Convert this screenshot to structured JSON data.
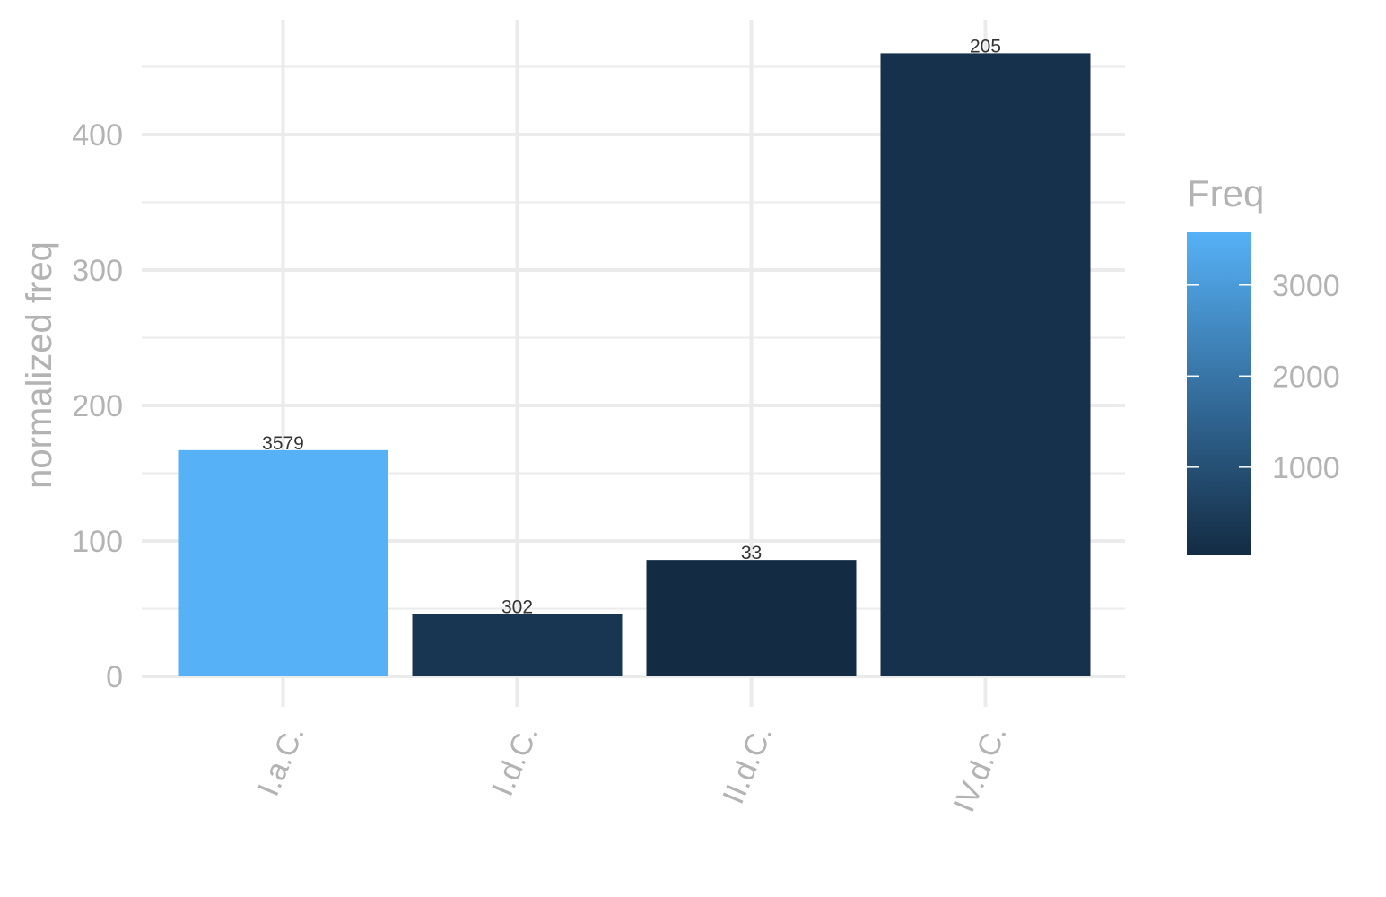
{
  "chart_data": {
    "type": "bar",
    "categories": [
      "I.a.C.",
      "I.d.C.",
      "II.d.C.",
      "IV.d.C."
    ],
    "values": [
      167,
      46,
      86,
      460
    ],
    "labels": [
      "3579",
      "302",
      "33",
      "205"
    ],
    "freq": [
      3579,
      302,
      33,
      205
    ],
    "title": "",
    "xlabel": "",
    "ylabel": "normalized freq",
    "ylim": [
      0,
      480
    ],
    "yticks": [
      0,
      100,
      200,
      300,
      400
    ],
    "ytick_labels": [
      "0",
      "100",
      "200",
      "300",
      "400"
    ],
    "grid": true,
    "legend": {
      "title": "Freq",
      "position": "right",
      "type": "colorbar",
      "range": [
        33,
        3579
      ],
      "ticks": [
        1000,
        2000,
        3000
      ],
      "tick_labels": [
        "1000",
        "2000",
        "3000"
      ],
      "color_low": "#132b43",
      "color_high": "#56b1f7"
    }
  }
}
